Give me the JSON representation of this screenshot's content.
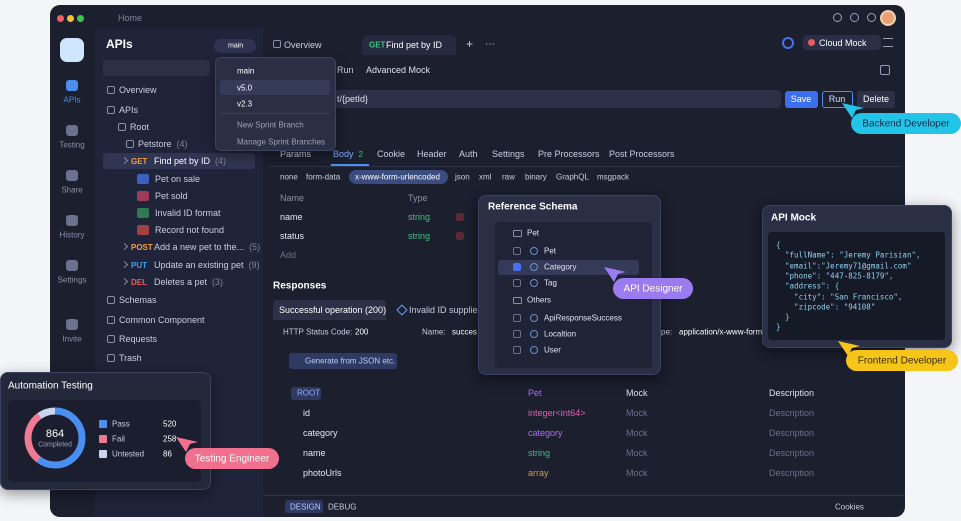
{
  "window": {
    "home": "Home",
    "mock_env": "Cloud Mock"
  },
  "sidebar": [
    "APIs",
    "Testing",
    "Share",
    "History",
    "Settings",
    "Invite"
  ],
  "tree": {
    "title": "APIs",
    "branch": "main",
    "rows": [
      {
        "label": "Overview"
      },
      {
        "label": "APIs"
      },
      {
        "label": "Root"
      },
      {
        "label": "Petstore",
        "count": "(4)"
      },
      {
        "method": "GET",
        "label": "Find pet by ID",
        "count": "(4)"
      },
      {
        "label": "Pet on sale"
      },
      {
        "label": "Pet sold"
      },
      {
        "label": "Invalid ID format"
      },
      {
        "label": "Record not found"
      },
      {
        "method": "POST",
        "label": "Add a new pet to the...",
        "count": "(5)"
      },
      {
        "method": "PUT",
        "label": "Update an existing pet",
        "count": "(9)"
      },
      {
        "method": "DEL",
        "label": "Deletes a pet",
        "count": "(3)"
      },
      {
        "label": "Schemas"
      },
      {
        "label": "Common Component"
      },
      {
        "label": "Requests"
      },
      {
        "label": "Trash"
      }
    ]
  },
  "branches": {
    "items": [
      "main",
      "v5.0",
      "v2.3"
    ],
    "actions": [
      "New Sprint Branch",
      "Manage Sprint Branches"
    ]
  },
  "tabs": {
    "overview": "Overview",
    "method": "GET",
    "name": "Find pet by ID",
    "add": "+",
    "more": "···"
  },
  "subtabs": [
    "Run",
    "Advanced Mock"
  ],
  "request": {
    "url": "t/{petId}",
    "save": "Save",
    "run": "Run",
    "delete": "Delete"
  },
  "param_tabs": [
    {
      "label": "Params"
    },
    {
      "label": "Body",
      "count": "2"
    },
    {
      "label": "Cookie"
    },
    {
      "label": "Header"
    },
    {
      "label": "Auth"
    },
    {
      "label": "Settings"
    },
    {
      "label": "Pre Processors"
    },
    {
      "label": "Post Processors"
    }
  ],
  "body_types": [
    "none",
    "form-data",
    "x-www-form-urlencoded",
    "json",
    "xml",
    "raw",
    "binary",
    "GraphQL",
    "msgpack"
  ],
  "params_table": {
    "headers": [
      "Name",
      "Type"
    ],
    "rows": [
      [
        "name",
        "string"
      ],
      [
        "status",
        "string"
      ]
    ],
    "add": "Add"
  },
  "responses": {
    "title": "Responses",
    "tabs": [
      "Successful operation (200)",
      "Invalid ID supplied"
    ],
    "status_label": "HTTP Status Code:",
    "status": "200",
    "name_label": "Name:",
    "name": "succes",
    "type_label": "pe:",
    "type": "application/x-www-form-",
    "generate": "Generate from JSON etc."
  },
  "schema_table": {
    "headers": [
      "ROOT",
      "Pet",
      "Mock",
      "Description"
    ],
    "rows": [
      [
        "id",
        "integer<int64>",
        "Mock",
        "Description"
      ],
      [
        "category",
        "category",
        "Mock",
        "Description"
      ],
      [
        "name",
        "string",
        "Mock",
        "Description"
      ],
      [
        "photoUrls",
        "array",
        "Mock",
        "Description"
      ]
    ]
  },
  "bottom": {
    "tabs": [
      "DESIGN",
      "DEBUG"
    ],
    "cookies": "Cookies"
  },
  "reference_schema": {
    "title": "Reference Schema",
    "groups": [
      {
        "name": "Pet",
        "items": [
          "Pet",
          "Category",
          "Tag"
        ]
      },
      {
        "name": "Others",
        "items": [
          "ApiResponseSuccess",
          "Localtion",
          "User"
        ]
      }
    ]
  },
  "api_mock": {
    "title": "API Mock",
    "lines": [
      "{",
      "  \"fullName\": \"Jeremy Parisian\",",
      "  \"email\":\"Jeremy71@gmail.com\"",
      "  \"phone\": \"447-825-8179\",",
      "  \"address\": {",
      "    \"city\": \"San Francisco\",",
      "    \"zipcode\": \"94108\"",
      "  }",
      "}"
    ]
  },
  "automation": {
    "title": "Automation Testing",
    "total": 864,
    "total_label": "Completed",
    "items": [
      {
        "name": "Pass",
        "value": 520,
        "color": "#4a8ff0"
      },
      {
        "name": "Fail",
        "value": 258,
        "color": "#f07a93"
      },
      {
        "name": "Untested",
        "value": 86,
        "color": "#c8d4f0"
      }
    ]
  },
  "callouts": [
    "Backend Developer",
    "API Designer",
    "Frontend Developer",
    "Testing Engineer"
  ]
}
